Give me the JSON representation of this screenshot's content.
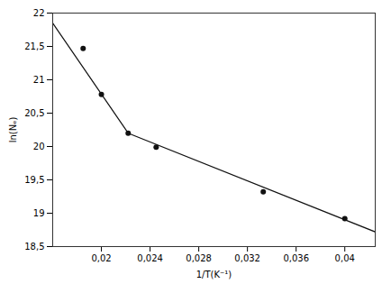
{
  "chart_data": {
    "type": "scatter",
    "xlabel": "1/T(K⁻¹)",
    "ylabel": "ln(Nₑ)",
    "series": [
      {
        "type": "scatter",
        "marker": "circle",
        "color": "#111111",
        "x": [
          0.0185,
          0.02,
          0.0222,
          0.0245,
          0.0333,
          0.04
        ],
        "values": [
          21.47,
          20.78,
          20.2,
          19.99,
          19.32,
          18.92
        ]
      },
      {
        "type": "line",
        "color": "#111111",
        "x": [
          0.016,
          0.0222
        ],
        "values": [
          21.85,
          20.2
        ]
      },
      {
        "type": "line",
        "color": "#111111",
        "x": [
          0.0222,
          0.0425
        ],
        "values": [
          20.2,
          18.72
        ]
      }
    ],
    "xlim": [
      0.016,
      0.0425
    ],
    "ylim": [
      18.5,
      22.0
    ],
    "xticks": [
      {
        "value": 0.02,
        "label": "0,02"
      },
      {
        "value": 0.024,
        "label": "0,024"
      },
      {
        "value": 0.028,
        "label": "0,028"
      },
      {
        "value": 0.032,
        "label": "0,032"
      },
      {
        "value": 0.036,
        "label": "0,036"
      },
      {
        "value": 0.04,
        "label": "0,04"
      }
    ],
    "yticks": [
      {
        "value": 18.5,
        "label": "18,5"
      },
      19,
      {
        "value": 19.5,
        "label": "19,5"
      },
      20,
      {
        "value": 20.5,
        "label": "20,5"
      },
      21,
      {
        "value": 21.5,
        "label": "21,5"
      },
      22
    ],
    "grid": false
  }
}
